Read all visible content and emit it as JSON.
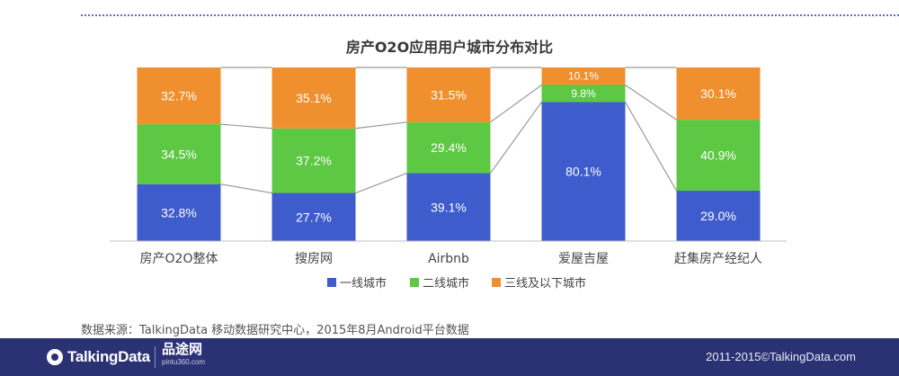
{
  "chart_data": {
    "type": "bar",
    "stacked": true,
    "title": "房产O2O应用用户城市分布对比",
    "categories": [
      "房产O2O整体",
      "搜房网",
      "Airbnb",
      "爱屋吉屋",
      "赶集房产经纪人"
    ],
    "series": [
      {
        "name": "一线城市",
        "color": "#3f5ccc",
        "values": [
          32.8,
          27.7,
          39.1,
          80.1,
          29.0
        ],
        "labels": [
          "32.8%",
          "27.7%",
          "39.1%",
          "80.1%",
          "29.0%"
        ]
      },
      {
        "name": "二线城市",
        "color": "#5cc844",
        "values": [
          34.5,
          37.2,
          29.4,
          9.8,
          40.9
        ],
        "labels": [
          "34.5%",
          "37.2%",
          "29.4%",
          "9.8%",
          "40.9%"
        ]
      },
      {
        "name": "三线及以下城市",
        "color": "#f08f2e",
        "values": [
          32.7,
          35.1,
          31.5,
          10.1,
          30.1
        ],
        "labels": [
          "32.7%",
          "35.1%",
          "31.5%",
          "10.1%",
          "30.1%"
        ]
      }
    ],
    "ylim": [
      0,
      100
    ],
    "legend_position": "bottom",
    "grid": false
  },
  "source_note": "数据来源：TalkingData 移动数据研究中心，2015年8月Android平台数据",
  "footer": {
    "logo": "TalkingData",
    "partner_name": "品途网",
    "partner_url": "pintu360.com",
    "copyright": "2011-2015©TalkingData.com"
  }
}
